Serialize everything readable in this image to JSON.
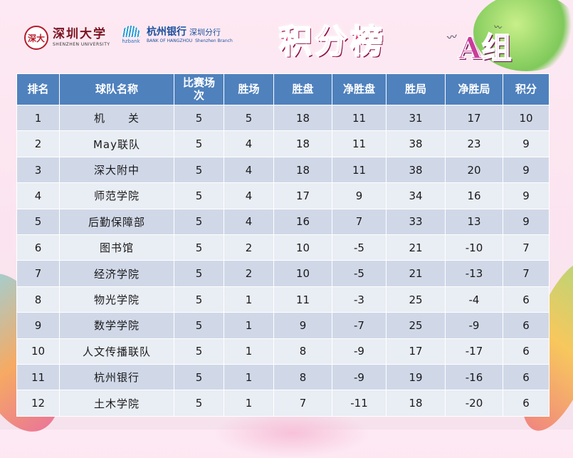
{
  "header": {
    "logo_szu_cn": "深圳大学",
    "logo_szu_en": "SHENZHEN UNIVERSITY",
    "logo_seal": "深大",
    "logo_hz_mark": "hzbank",
    "logo_hz_cn": "杭州银行",
    "logo_hz_branch_cn": "深圳分行",
    "logo_hz_en": "BANK OF HANGZHOU",
    "logo_hz_branch_en": "Shenzhen Branch",
    "title": "积分榜",
    "group": "A组"
  },
  "table": {
    "columns": [
      "排名",
      "球队名称",
      "比赛场次",
      "胜场",
      "胜盘",
      "净胜盘",
      "胜局",
      "净胜局",
      "积分"
    ],
    "rows": [
      [
        "1",
        "机　　关",
        "5",
        "5",
        "18",
        "11",
        "31",
        "17",
        "10"
      ],
      [
        "2",
        "May联队",
        "5",
        "4",
        "18",
        "11",
        "38",
        "23",
        "9"
      ],
      [
        "3",
        "深大附中",
        "5",
        "4",
        "18",
        "11",
        "38",
        "20",
        "9"
      ],
      [
        "4",
        "师范学院",
        "5",
        "4",
        "17",
        "9",
        "34",
        "16",
        "9"
      ],
      [
        "5",
        "后勤保障部",
        "5",
        "4",
        "16",
        "7",
        "33",
        "13",
        "9"
      ],
      [
        "6",
        "图书馆",
        "5",
        "2",
        "10",
        "-5",
        "21",
        "-10",
        "7"
      ],
      [
        "7",
        "经济学院",
        "5",
        "2",
        "10",
        "-5",
        "21",
        "-13",
        "7"
      ],
      [
        "8",
        "物光学院",
        "5",
        "1",
        "11",
        "-3",
        "25",
        "-4",
        "6"
      ],
      [
        "9",
        "数学学院",
        "5",
        "1",
        "9",
        "-7",
        "25",
        "-9",
        "6"
      ],
      [
        "10",
        "人文传播联队",
        "5",
        "1",
        "8",
        "-9",
        "17",
        "-17",
        "6"
      ],
      [
        "11",
        "杭州银行",
        "5",
        "1",
        "8",
        "-9",
        "19",
        "-16",
        "6"
      ],
      [
        "12",
        "土木学院",
        "5",
        "1",
        "7",
        "-11",
        "18",
        "-20",
        "6"
      ]
    ]
  },
  "colors": {
    "header_blue": "#4f81bd",
    "row_dark": "#d0d8e8",
    "row_light": "#e9edf4",
    "title_pink": "#e3266e"
  }
}
